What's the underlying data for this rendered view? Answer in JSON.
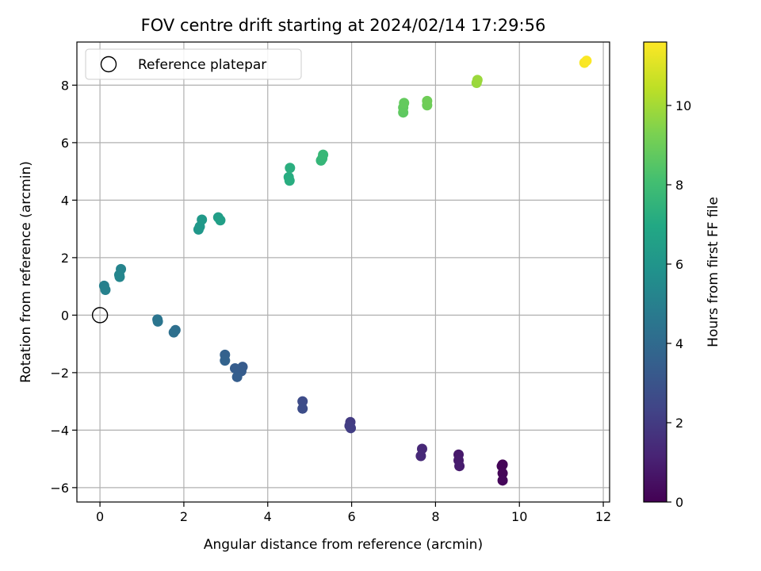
{
  "chart_data": {
    "type": "scatter",
    "title": "FOV centre drift starting at 2024/02/14 17:29:56",
    "xlabel": "Angular distance from reference (arcmin)",
    "ylabel": "Rotation from reference (arcmin)",
    "xlim": [
      -0.55,
      12.15
    ],
    "ylim": [
      -6.5,
      9.5
    ],
    "xticks": [
      0,
      2,
      4,
      6,
      8,
      10,
      12
    ],
    "yticks": [
      -6,
      -4,
      -2,
      0,
      2,
      4,
      6,
      8
    ],
    "grid": true,
    "legend": {
      "position": "top-left",
      "entries": [
        "Reference platepar"
      ]
    },
    "reference_point": {
      "x": 0,
      "y": 0
    },
    "colorbar": {
      "label": "Hours from first FF file",
      "range": [
        0,
        11.6
      ],
      "ticks": [
        0,
        2,
        4,
        6,
        8,
        10
      ],
      "colormap": "viridis"
    },
    "points": [
      {
        "x": 9.6,
        "y": -5.2,
        "c": 0.05
      },
      {
        "x": 9.58,
        "y": -5.25,
        "c": 0.1
      },
      {
        "x": 9.6,
        "y": -5.5,
        "c": 0.15
      },
      {
        "x": 9.6,
        "y": -5.75,
        "c": 0.2
      },
      {
        "x": 8.55,
        "y": -4.85,
        "c": 0.8
      },
      {
        "x": 8.55,
        "y": -5.05,
        "c": 0.85
      },
      {
        "x": 8.57,
        "y": -5.25,
        "c": 0.9
      },
      {
        "x": 7.68,
        "y": -4.65,
        "c": 1.3
      },
      {
        "x": 7.65,
        "y": -4.9,
        "c": 1.35
      },
      {
        "x": 5.97,
        "y": -3.72,
        "c": 2.0
      },
      {
        "x": 5.95,
        "y": -3.85,
        "c": 2.05
      },
      {
        "x": 5.98,
        "y": -3.93,
        "c": 2.1
      },
      {
        "x": 4.83,
        "y": -3.0,
        "c": 2.65
      },
      {
        "x": 4.83,
        "y": -3.25,
        "c": 2.7
      },
      {
        "x": 3.4,
        "y": -1.8,
        "c": 3.3
      },
      {
        "x": 3.37,
        "y": -1.95,
        "c": 3.35
      },
      {
        "x": 3.22,
        "y": -1.85,
        "c": 3.4
      },
      {
        "x": 3.27,
        "y": -2.15,
        "c": 3.45
      },
      {
        "x": 2.98,
        "y": -1.38,
        "c": 3.6
      },
      {
        "x": 2.98,
        "y": -1.58,
        "c": 3.65
      },
      {
        "x": 1.8,
        "y": -0.52,
        "c": 4.2
      },
      {
        "x": 1.76,
        "y": -0.6,
        "c": 4.25
      },
      {
        "x": 1.37,
        "y": -0.15,
        "c": 4.45
      },
      {
        "x": 1.38,
        "y": -0.22,
        "c": 4.5
      },
      {
        "x": 0.1,
        "y": 1.02,
        "c": 5.0
      },
      {
        "x": 0.13,
        "y": 0.88,
        "c": 5.05
      },
      {
        "x": 0.5,
        "y": 1.6,
        "c": 5.2
      },
      {
        "x": 0.46,
        "y": 1.4,
        "c": 5.25
      },
      {
        "x": 0.47,
        "y": 1.33,
        "c": 5.3
      },
      {
        "x": 2.35,
        "y": 2.98,
        "c": 6.1
      },
      {
        "x": 2.38,
        "y": 3.08,
        "c": 6.15
      },
      {
        "x": 2.43,
        "y": 3.32,
        "c": 6.2
      },
      {
        "x": 2.82,
        "y": 3.4,
        "c": 6.45
      },
      {
        "x": 2.87,
        "y": 3.3,
        "c": 6.5
      },
      {
        "x": 4.5,
        "y": 4.8,
        "c": 7.15
      },
      {
        "x": 4.52,
        "y": 4.68,
        "c": 7.2
      },
      {
        "x": 4.53,
        "y": 5.12,
        "c": 7.25
      },
      {
        "x": 5.27,
        "y": 5.38,
        "c": 7.6
      },
      {
        "x": 5.3,
        "y": 5.45,
        "c": 7.65
      },
      {
        "x": 5.32,
        "y": 5.58,
        "c": 7.7
      },
      {
        "x": 7.23,
        "y": 7.05,
        "c": 8.7
      },
      {
        "x": 7.23,
        "y": 7.22,
        "c": 8.75
      },
      {
        "x": 7.25,
        "y": 7.38,
        "c": 8.8
      },
      {
        "x": 7.8,
        "y": 7.3,
        "c": 9.0
      },
      {
        "x": 7.8,
        "y": 7.45,
        "c": 9.05
      },
      {
        "x": 8.98,
        "y": 8.08,
        "c": 9.8
      },
      {
        "x": 9.0,
        "y": 8.18,
        "c": 9.85
      },
      {
        "x": 11.55,
        "y": 8.78,
        "c": 11.5
      },
      {
        "x": 11.6,
        "y": 8.85,
        "c": 11.55
      }
    ]
  }
}
